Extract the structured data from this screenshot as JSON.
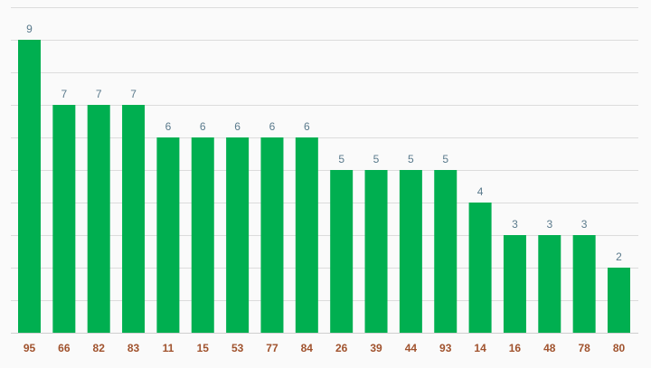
{
  "chart_data": {
    "type": "bar",
    "title": "",
    "xlabel": "",
    "ylabel": "",
    "categories": [
      "95",
      "66",
      "82",
      "83",
      "11",
      "15",
      "53",
      "77",
      "84",
      "26",
      "39",
      "44",
      "93",
      "14",
      "16",
      "48",
      "78",
      "80"
    ],
    "values": [
      9,
      7,
      7,
      7,
      6,
      6,
      6,
      6,
      6,
      5,
      5,
      5,
      5,
      4,
      3,
      3,
      3,
      2
    ],
    "ylim": [
      0,
      10
    ],
    "grid": true,
    "colors": {
      "bar": "#00af50",
      "value_label": "#5a7a8c",
      "tick_label": "#a0522d"
    }
  }
}
